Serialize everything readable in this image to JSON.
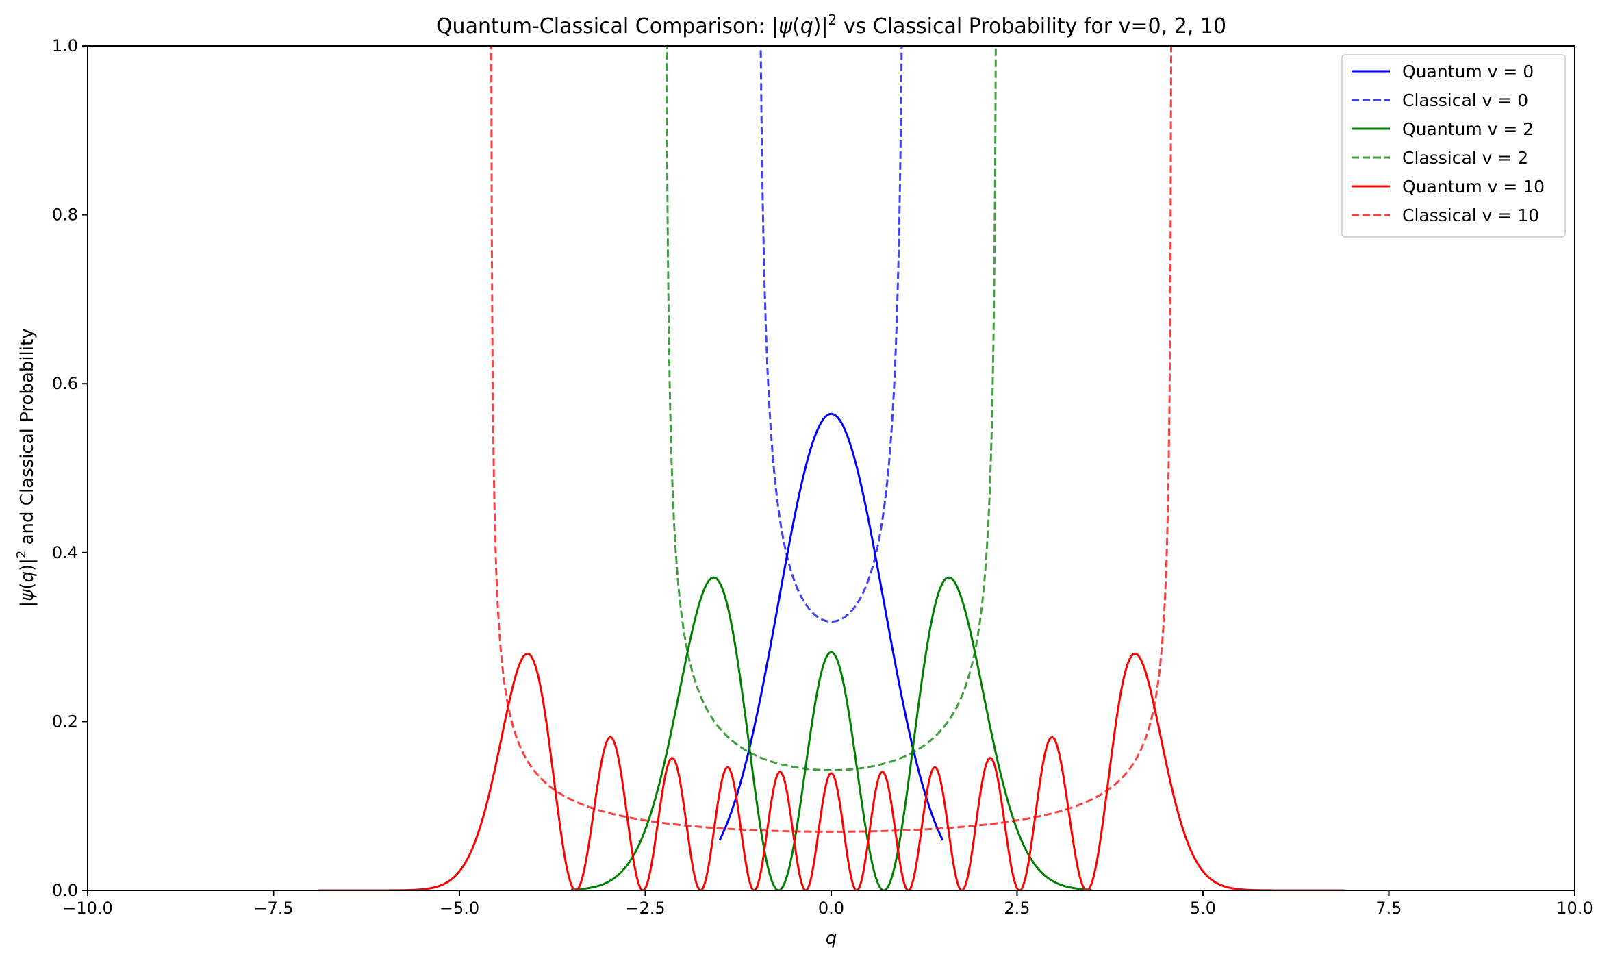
{
  "chart_data": {
    "type": "line",
    "title": "Quantum-Classical Comparison: |ψ(q)|² vs Classical Probability for v=0, 2, 10",
    "xlabel": "q",
    "ylabel": "|ψ(q)|² and Classical Probability",
    "xlim": [
      -10,
      10
    ],
    "ylim": [
      0,
      1.0
    ],
    "x_ticks": [
      "−10.0",
      "−7.5",
      "−5.0",
      "−2.5",
      "0.0",
      "2.5",
      "5.0",
      "7.5",
      "10.0"
    ],
    "y_ticks": [
      "0.0",
      "0.2",
      "0.4",
      "0.6",
      "0.8",
      "1.0"
    ],
    "grid": false,
    "legend_position": "top-right",
    "colors": {
      "v0": "#0000ff",
      "v2": "#008000",
      "v10": "#ff0000"
    },
    "series": [
      {
        "name": "Quantum v=0",
        "v": 0,
        "kind": "quantum",
        "color": "#0000ff",
        "dash": "solid",
        "x_range": [
          -1.5,
          1.5
        ],
        "sample_points": [
          [
            -1.5,
            0.059
          ],
          [
            -1.0,
            0.207
          ],
          [
            -0.5,
            0.439
          ],
          [
            0.0,
            0.564
          ],
          [
            0.5,
            0.439
          ],
          [
            1.0,
            0.207
          ],
          [
            1.5,
            0.059
          ]
        ]
      },
      {
        "name": "Classical v=0",
        "v": 0,
        "kind": "classical",
        "color": "#0000ff",
        "dash": "dashed",
        "x_range": [
          -1.0,
          1.0
        ],
        "sample_points": [
          [
            -0.95,
            1.02
          ],
          [
            -0.8,
            0.53
          ],
          [
            -0.5,
            0.367
          ],
          [
            0.0,
            0.318
          ],
          [
            0.5,
            0.367
          ],
          [
            0.8,
            0.53
          ],
          [
            0.95,
            1.02
          ]
        ]
      },
      {
        "name": "Quantum v=2",
        "v": 2,
        "kind": "quantum",
        "color": "#008000",
        "dash": "solid",
        "x_range": [
          -3.5,
          3.5
        ],
        "sample_points": [
          [
            -3.5,
            0.0
          ],
          [
            -1.58,
            0.37
          ],
          [
            -0.71,
            0.0
          ],
          [
            0.0,
            0.282
          ],
          [
            0.71,
            0.0
          ],
          [
            1.58,
            0.37
          ],
          [
            3.5,
            0.0
          ]
        ]
      },
      {
        "name": "Classical v=2",
        "v": 2,
        "kind": "classical",
        "color": "#008000",
        "dash": "dashed",
        "x_range": [
          -2.236,
          2.236
        ],
        "sample_points": [
          [
            -2.2,
            0.8
          ],
          [
            -1.5,
            0.19
          ],
          [
            0.0,
            0.142
          ],
          [
            1.5,
            0.19
          ],
          [
            2.2,
            0.8
          ]
        ]
      },
      {
        "name": "Quantum v=10",
        "v": 10,
        "kind": "quantum",
        "color": "#ff0000",
        "dash": "solid",
        "x_range": [
          -6.9,
          6.9
        ],
        "sample_points": [
          [
            -6.9,
            0.0
          ],
          [
            -4.1,
            0.28
          ],
          [
            -2.96,
            0.181
          ],
          [
            -2.14,
            0.157
          ],
          [
            -1.41,
            0.145
          ],
          [
            -0.7,
            0.14
          ],
          [
            0.0,
            0.14
          ],
          [
            0.7,
            0.14
          ],
          [
            1.41,
            0.145
          ],
          [
            2.14,
            0.157
          ],
          [
            2.96,
            0.181
          ],
          [
            4.1,
            0.28
          ],
          [
            6.9,
            0.0
          ]
        ]
      },
      {
        "name": "Classical v=10",
        "v": 10,
        "kind": "classical",
        "color": "#ff0000",
        "dash": "dashed",
        "x_range": [
          -4.583,
          4.583
        ],
        "sample_points": [
          [
            -4.55,
            0.6
          ],
          [
            -4.0,
            0.142
          ],
          [
            -2.5,
            0.081
          ],
          [
            0.0,
            0.069
          ],
          [
            2.5,
            0.081
          ],
          [
            4.0,
            0.142
          ],
          [
            4.55,
            0.6
          ]
        ]
      }
    ],
    "legend": [
      {
        "label": "Quantum v = 0",
        "series": 0
      },
      {
        "label": "Classical v = 0",
        "series": 1
      },
      {
        "label": "Quantum v = 2",
        "series": 2
      },
      {
        "label": "Classical v = 2",
        "series": 3
      },
      {
        "label": "Quantum v = 10",
        "series": 4
      },
      {
        "label": "Classical v = 10",
        "series": 5
      }
    ]
  }
}
